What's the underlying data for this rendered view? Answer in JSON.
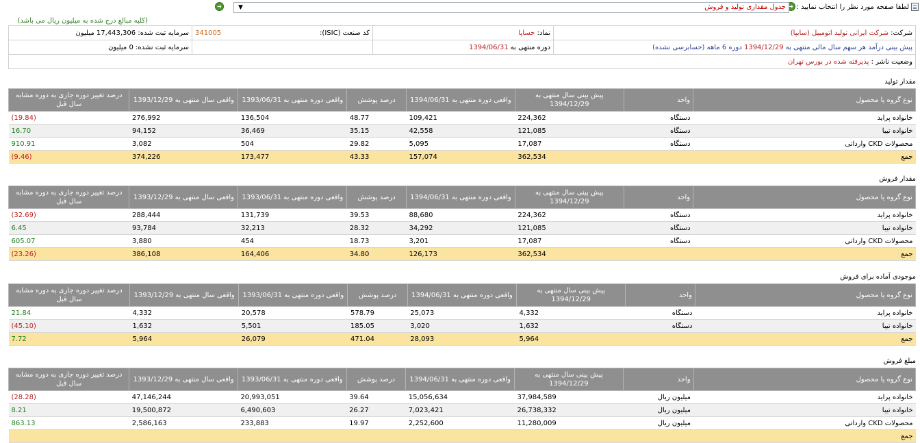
{
  "topbar": {
    "prompt": "لطفا صفحه مورد نظر را انتخاب نمایید :",
    "selected_page": "جدول مقداری تولید و فروش",
    "arrow_icon": "▼"
  },
  "note": "(کلیه مبالغ درج شده به میلیون ریال می باشد)",
  "info": {
    "company_label": "شرکت:",
    "company_value": "شرکت ایرانی تولید اتومبیل (سایپا)",
    "symbol_label": "نماد:",
    "symbol_value": "خساپا",
    "isic_label": "کد صنعت (ISIC):",
    "isic_value": "341005",
    "registered_capital": "سرمایه ثبت شده: 17,443,306 میلیون",
    "forecast_label": "پیش بینی درآمد هر سهم سال مالی منتهی به",
    "forecast_date": "1394/12/29",
    "forecast_period": "دوره 6 ماهه",
    "forecast_audit": "(حسابرسی نشده)",
    "period_label": "دوره منتهی به",
    "period_value": "1394/06/31",
    "unregistered_capital": "سرمایه ثبت نشده: 0 میلیون",
    "publisher_label": "وضعیت ناشر :",
    "publisher_value": "پذیرفته شده در بورس تهران"
  },
  "headers": {
    "product": "نوع گروه یا محصول",
    "unit": "واحد",
    "forecast_year": "پیش بینی سال منتهی به 1394/12/29",
    "actual_period": "واقعی دوره منتهی به 1394/06/31",
    "coverage": "درصد پوشش",
    "actual_prev_period": "واقعی دوره منتهی به 1393/06/31",
    "actual_prev_year": "واقعی سال منتهی به 1393/12/29",
    "change": "درصد تغییر دوره جاری به دوره مشابه سال قبل"
  },
  "sections": [
    {
      "title": "مقدار تولید",
      "rows": [
        {
          "product": "خانواده پراید",
          "unit": "دستگاه",
          "forecast": "224,362",
          "actual": "109,421",
          "coverage": "48.77",
          "prev_period": "136,504",
          "prev_year": "276,992",
          "change": "(19.84)",
          "tone": "neg"
        },
        {
          "product": "خانواده تیبا",
          "unit": "دستگاه",
          "forecast": "121,085",
          "actual": "42,558",
          "coverage": "35.15",
          "prev_period": "36,469",
          "prev_year": "94,152",
          "change": "16.70",
          "tone": "pos"
        },
        {
          "product": "محصولات CKD وارداتی",
          "unit": "دستگاه",
          "forecast": "17,087",
          "actual": "5,095",
          "coverage": "29.82",
          "prev_period": "504",
          "prev_year": "3,082",
          "change": "910.91",
          "tone": "pos"
        }
      ],
      "total": {
        "product": "جمع",
        "unit": "",
        "forecast": "362,534",
        "actual": "157,074",
        "coverage": "43.33",
        "prev_period": "173,477",
        "prev_year": "374,226",
        "change": "(9.46)",
        "tone": "neg"
      }
    },
    {
      "title": "مقدار فروش",
      "rows": [
        {
          "product": "خانواده پراید",
          "unit": "دستگاه",
          "forecast": "224,362",
          "actual": "88,680",
          "coverage": "39.53",
          "prev_period": "131,739",
          "prev_year": "288,444",
          "change": "(32.69)",
          "tone": "neg"
        },
        {
          "product": "خانواده تیبا",
          "unit": "دستگاه",
          "forecast": "121,085",
          "actual": "34,292",
          "coverage": "28.32",
          "prev_period": "32,213",
          "prev_year": "93,784",
          "change": "6.45",
          "tone": "pos"
        },
        {
          "product": "محصولات CKD وارداتی",
          "unit": "دستگاه",
          "forecast": "17,087",
          "actual": "3,201",
          "coverage": "18.73",
          "prev_period": "454",
          "prev_year": "3,880",
          "change": "605.07",
          "tone": "pos"
        }
      ],
      "total": {
        "product": "جمع",
        "unit": "",
        "forecast": "362,534",
        "actual": "126,173",
        "coverage": "34.80",
        "prev_period": "164,406",
        "prev_year": "386,108",
        "change": "(23.26)",
        "tone": "neg"
      }
    },
    {
      "title": "موجودی آماده برای فروش",
      "rows": [
        {
          "product": "خانواده پراید",
          "unit": "دستگاه",
          "forecast": "4,332",
          "actual": "25,073",
          "coverage": "578.79",
          "prev_period": "20,578",
          "prev_year": "4,332",
          "change": "21.84",
          "tone": "pos"
        },
        {
          "product": "خانواده تیبا",
          "unit": "دستگاه",
          "forecast": "1,632",
          "actual": "3,020",
          "coverage": "185.05",
          "prev_period": "5,501",
          "prev_year": "1,632",
          "change": "(45.10)",
          "tone": "neg"
        }
      ],
      "total": {
        "product": "جمع",
        "unit": "",
        "forecast": "5,964",
        "actual": "28,093",
        "coverage": "471.04",
        "prev_period": "26,079",
        "prev_year": "5,964",
        "change": "7.72",
        "tone": "pos"
      }
    },
    {
      "title": "مبلغ فروش",
      "rows": [
        {
          "product": "خانواده پراید",
          "unit": "میلیون ریال",
          "forecast": "37,984,589",
          "actual": "15,056,634",
          "coverage": "39.64",
          "prev_period": "20,993,051",
          "prev_year": "47,146,244",
          "change": "(28.28)",
          "tone": "neg"
        },
        {
          "product": "خانواده تیبا",
          "unit": "میلیون ریال",
          "forecast": "26,738,332",
          "actual": "7,023,421",
          "coverage": "26.27",
          "prev_period": "6,490,603",
          "prev_year": "19,500,872",
          "change": "8.21",
          "tone": "pos"
        },
        {
          "product": "محصولات CKD وارداتی",
          "unit": "میلیون ریال",
          "forecast": "11,280,009",
          "actual": "2,252,600",
          "coverage": "19.97",
          "prev_period": "233,883",
          "prev_year": "2,586,163",
          "change": "863.13",
          "tone": "pos"
        }
      ],
      "total": {
        "product": "جمع",
        "unit": "",
        "forecast": "",
        "actual": "",
        "coverage": "",
        "prev_period": "",
        "prev_year": "",
        "change": "",
        "tone": "neg"
      }
    }
  ]
}
